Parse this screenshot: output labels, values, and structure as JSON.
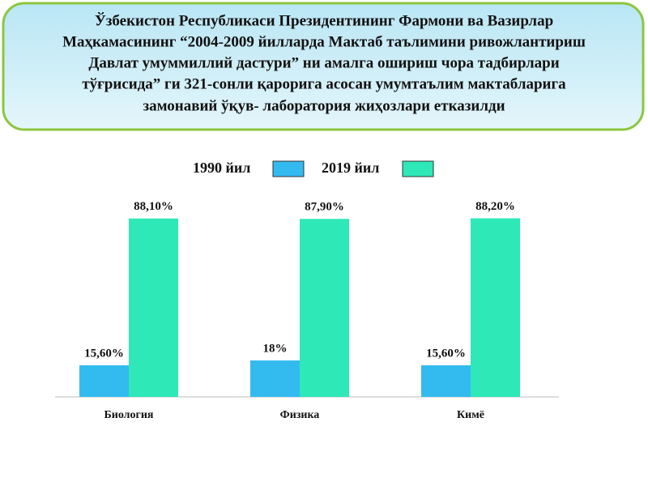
{
  "header": {
    "lines": [
      "Ўзбекистон Республикаси  Президентининг Фармони  ва Вазирлар",
      "Маҳкамасининг  “2004-2009 йилларда  Мактаб таълимини ривожлантириш",
      "Давлат умуммиллий дастури” ни  амалга ошириш чора тадбирлари",
      "тўғрисида” ги 321-сонли  қарорига  асосан  умумтаълим мактабларига",
      "замонавий  ўқув- лаборатория   жиҳозлари   етказилди"
    ]
  },
  "chart_data": {
    "type": "bar",
    "categories": [
      "Биология",
      "Физика",
      "Кимё"
    ],
    "series": [
      {
        "name": "1990 йил",
        "color": "#33bbf0",
        "values": [
          15.6,
          18,
          15.6
        ],
        "value_labels": [
          "15,60%",
          "18%",
          "15,60%"
        ]
      },
      {
        "name": "2019 йил",
        "color": "#2ee8b8",
        "values": [
          88.1,
          87.9,
          88.2
        ],
        "value_labels": [
          "88,10%",
          "87,90%",
          "88,20%"
        ]
      }
    ]
  }
}
